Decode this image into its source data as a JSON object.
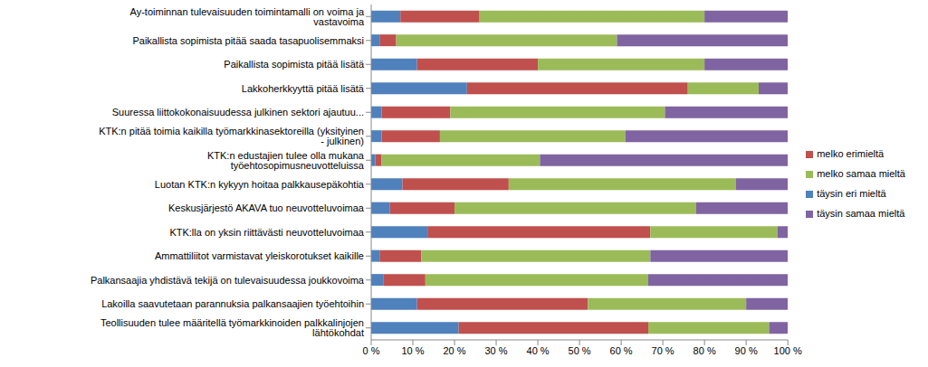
{
  "chart_data": {
    "type": "bar",
    "orientation": "horizontal",
    "stacked": true,
    "grid": false,
    "legend": "right",
    "categories": [
      "Ay-toiminnan tulevaisuuden toimintamalli on voima ja vastavoima",
      "Paikallista sopimista pitää saada tasapuolisemmaksi",
      "Paikallista sopimista pitää lisätä",
      "Lakkoherkkyyttä pitää lisätä",
      "Suuressa liittokokonaisuudessa julkinen sektori ajautuu...",
      "KTK:n pitää toimia kaikilla työmarkkinasektoreilla (yksityinen - julkinen)",
      "KTK:n edustajien tulee olla mukana työehtosopimusneuvotteluissa",
      "Luotan KTK:n kykyyn hoitaa palkkausepäkohtia",
      "Keskusjärjestö AKAVA tuo neuvotteluvoimaa",
      "KTK:lla on yksin riittävästi neuvotteluvoimaa",
      "Ammattiliitot varmistavat yleiskorotukset kaikille",
      "Palkansaajia yhdistävä tekijä on tulevaisuudessa joukkovoima",
      "Lakoilla saavutetaan parannuksia palkansaajien työehtoihin",
      "Teollisuuden tulee määritellä työmarkkinoiden palkkalinjojen lähtökohdat"
    ],
    "series": [
      {
        "name": "täysin eri mieltä",
        "color": "#4f81bd",
        "values": [
          7,
          2,
          11,
          23,
          2.5,
          2.5,
          1,
          7.5,
          4.5,
          13.5,
          2,
          3,
          11,
          21
        ]
      },
      {
        "name": "melko erimieltä",
        "color": "#c0504d",
        "values": [
          19,
          4,
          29,
          53,
          16.5,
          14,
          1.5,
          25.5,
          15.5,
          53.5,
          10,
          10,
          41,
          45.5
        ]
      },
      {
        "name": "melko samaa mieltä",
        "color": "#9bbb59",
        "values": [
          54,
          53,
          40,
          17,
          51.5,
          44.5,
          38,
          54.5,
          58,
          30.5,
          55,
          53.5,
          38,
          29
        ]
      },
      {
        "name": "täysin samaa mieltä",
        "color": "#8064a2",
        "values": [
          20,
          41,
          20,
          7,
          29.5,
          39,
          59.5,
          12.5,
          22,
          2.5,
          33,
          33.5,
          10,
          4.5
        ]
      }
    ],
    "xlim": [
      0,
      100
    ],
    "xticks": [
      {
        "value": 0,
        "label": "0 %"
      },
      {
        "value": 10,
        "label": "10 %"
      },
      {
        "value": 20,
        "label": "20 %"
      },
      {
        "value": 30,
        "label": "30 %"
      },
      {
        "value": 40,
        "label": "40 %"
      },
      {
        "value": 50,
        "label": "50 %"
      },
      {
        "value": 60,
        "label": "60 %"
      },
      {
        "value": 70,
        "label": "70 %"
      },
      {
        "value": 80,
        "label": "80 %"
      },
      {
        "value": 90,
        "label": "90 %"
      },
      {
        "value": 100,
        "label": "100 %"
      }
    ]
  }
}
